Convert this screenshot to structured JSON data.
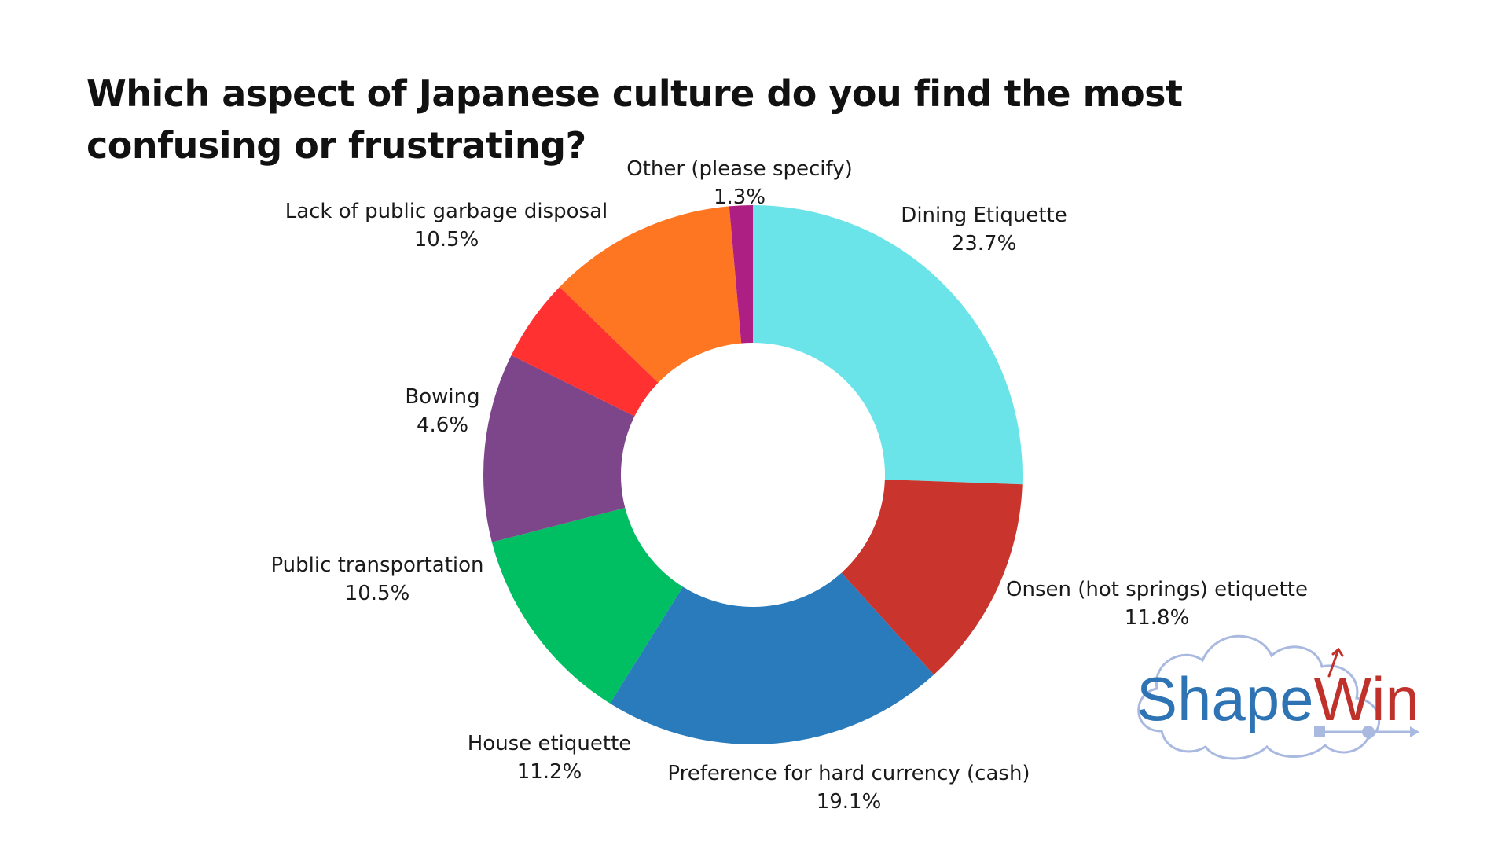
{
  "title": "Which aspect of Japanese culture do you find the most confusing or frustrating?",
  "logo": {
    "part1": "Shape",
    "part2": "Win",
    "colors": {
      "part1": "#2e74b5",
      "part2": "#c0312b",
      "cloud": "#a9b9df"
    }
  },
  "chart_data": {
    "type": "pie",
    "style": "donut",
    "title": "Which aspect of Japanese culture do you find the most confusing or frustrating?",
    "start": "12 o'clock, clockwise",
    "legend": "none (labels beside slices)",
    "slices": [
      {
        "label": "Dining Etiquette",
        "value": 23.7,
        "value_label": "23.7%",
        "color": "#6ae4e8"
      },
      {
        "label": "Onsen (hot springs) etiquette",
        "value": 11.8,
        "value_label": "11.8%",
        "color": "#c9342c"
      },
      {
        "label": "Preference for hard currency (cash)",
        "value": 19.1,
        "value_label": "19.1%",
        "color": "#2a7bbb"
      },
      {
        "label": "House etiquette",
        "value": 11.2,
        "value_label": "11.2%",
        "color": "#00bf63"
      },
      {
        "label": "Public transportation",
        "value": 10.5,
        "value_label": "10.5%",
        "color": "#7d458a"
      },
      {
        "label": "Bowing",
        "value": 4.6,
        "value_label": "4.6%",
        "color": "#ff3131"
      },
      {
        "label": "Lack of public garbage disposal",
        "value": 10.5,
        "value_label": "10.5%",
        "color": "#ff7622"
      },
      {
        "label": "Other (please specify)",
        "value": 1.3,
        "value_label": "1.3%",
        "color": "#ae1f83"
      }
    ]
  }
}
